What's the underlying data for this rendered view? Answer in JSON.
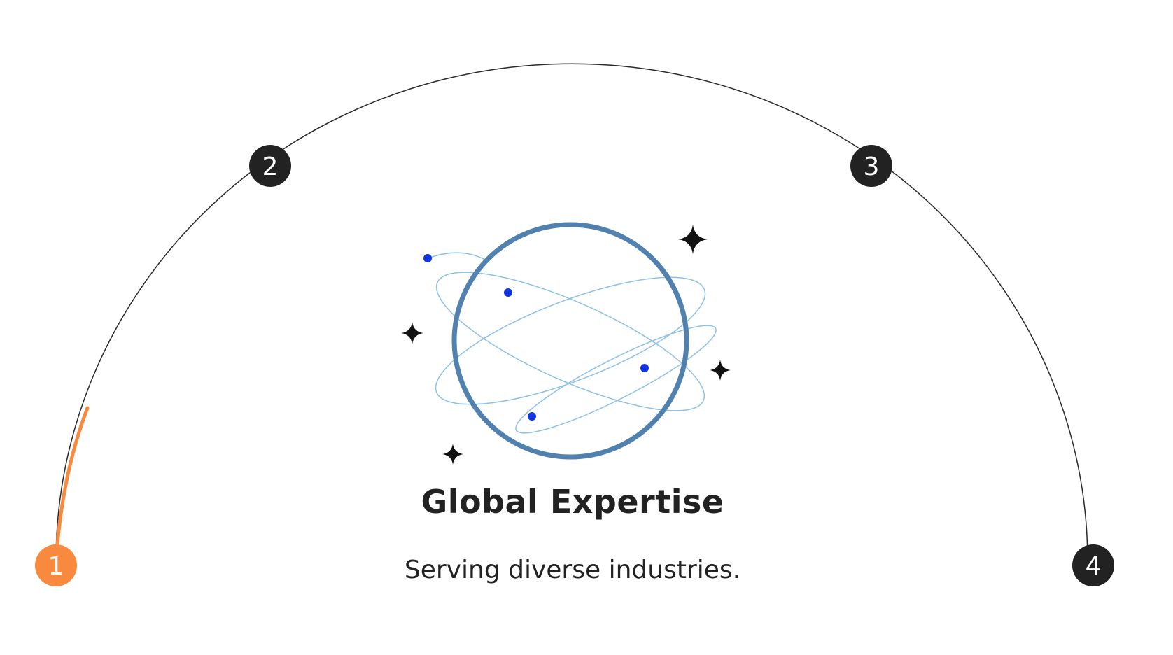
{
  "progress": {
    "current_step": 1,
    "total_steps": 4,
    "steps": [
      {
        "label": "1",
        "active": true
      },
      {
        "label": "2",
        "active": false
      },
      {
        "label": "3",
        "active": false
      },
      {
        "label": "4",
        "active": false
      }
    ]
  },
  "content": {
    "title": "Global Expertise",
    "subtitle": "Serving diverse industries."
  },
  "illustration": {
    "icon": "globe-orbit-icon",
    "sparkle_icon": "sparkle-icon"
  },
  "colors": {
    "accent": "#F78A3E",
    "step_dark": "#222222",
    "arc_line": "#2a2a2a",
    "globe_stroke": "#5181AF",
    "orbit_stroke": "#8EC1E6",
    "orbit_dot": "#1035E0",
    "text": "#222222"
  }
}
